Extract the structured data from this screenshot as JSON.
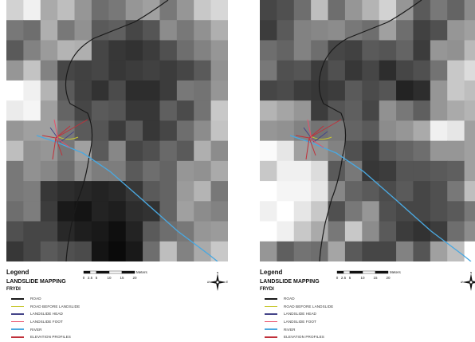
{
  "panels": [
    {
      "grid": [
        [
          210,
          240,
          170,
          190,
          150,
          110,
          120,
          150,
          160,
          120,
          150,
          200,
          215
        ],
        [
          120,
          110,
          175,
          120,
          145,
          90,
          95,
          70,
          85,
          140,
          120,
          145,
          175
        ],
        [
          90,
          130,
          155,
          180,
          175,
          70,
          55,
          50,
          60,
          80,
          110,
          130,
          150
        ],
        [
          150,
          195,
          130,
          70,
          65,
          70,
          55,
          60,
          65,
          60,
          70,
          90,
          145
        ],
        [
          255,
          240,
          180,
          90,
          65,
          50,
          75,
          45,
          45,
          60,
          120,
          115,
          150
        ],
        [
          235,
          245,
          160,
          100,
          70,
          90,
          85,
          55,
          55,
          95,
          75,
          115,
          200
        ],
        [
          150,
          160,
          160,
          120,
          90,
          85,
          60,
          90,
          55,
          70,
          110,
          140,
          195
        ],
        [
          190,
          145,
          150,
          120,
          160,
          90,
          135,
          70,
          80,
          105,
          90,
          175,
          140
        ],
        [
          120,
          145,
          135,
          110,
          140,
          125,
          125,
          90,
          110,
          100,
          150,
          145,
          170
        ],
        [
          120,
          125,
          55,
          45,
          40,
          35,
          40,
          55,
          90,
          100,
          155,
          180,
          120
        ],
        [
          110,
          125,
          60,
          25,
          20,
          35,
          30,
          45,
          50,
          100,
          160,
          140,
          130
        ],
        [
          80,
          70,
          70,
          40,
          30,
          25,
          15,
          35,
          90,
          110,
          120,
          150,
          155
        ],
        [
          55,
          70,
          90,
          80,
          75,
          20,
          10,
          25,
          110,
          190,
          130,
          170,
          200
        ]
      ],
      "legend": {
        "title": "Legend",
        "heading": "LANDSLIDE MAPPING",
        "subheading": "FRYDI",
        "items": [
          "ROAD",
          "ROAD BEFORE LANDSLIDE",
          "LANDSLIDE HEAD",
          "LANDSLIDE FOOT",
          "RIVER",
          "ELEVATION PROFILES"
        ]
      },
      "scale": {
        "unit": "Meters",
        "ticks": [
          "0",
          "2.5",
          "5",
          "10",
          "15",
          "20"
        ]
      },
      "north": {
        "n": "N",
        "s": "S",
        "e": "E",
        "w": "W"
      }
    },
    {
      "grid": [
        [
          70,
          80,
          110,
          190,
          110,
          150,
          180,
          210,
          150,
          90,
          120,
          100,
          140
        ],
        [
          60,
          90,
          130,
          135,
          140,
          120,
          110,
          160,
          110,
          65,
          80,
          150,
          160
        ],
        [
          110,
          100,
          130,
          110,
          70,
          65,
          90,
          85,
          100,
          60,
          150,
          145,
          185
        ],
        [
          120,
          80,
          85,
          60,
          80,
          55,
          70,
          45,
          70,
          80,
          115,
          200,
          220
        ],
        [
          70,
          75,
          60,
          55,
          60,
          90,
          75,
          85,
          35,
          45,
          150,
          200,
          190
        ],
        [
          180,
          165,
          150,
          60,
          85,
          95,
          70,
          145,
          120,
          95,
          150,
          170,
          180
        ],
        [
          150,
          145,
          130,
          115,
          120,
          100,
          90,
          140,
          150,
          170,
          240,
          230,
          160
        ],
        [
          250,
          230,
          160,
          150,
          130,
          80,
          60,
          90,
          100,
          110,
          150,
          150,
          160
        ],
        [
          200,
          240,
          240,
          220,
          90,
          120,
          55,
          60,
          85,
          85,
          90,
          95,
          160
        ],
        [
          255,
          245,
          245,
          230,
          135,
          100,
          90,
          75,
          90,
          70,
          80,
          120,
          190
        ],
        [
          240,
          255,
          230,
          200,
          80,
          120,
          150,
          80,
          70,
          70,
          80,
          90,
          120
        ],
        [
          255,
          240,
          200,
          170,
          120,
          200,
          140,
          90,
          60,
          50,
          60,
          110,
          140
        ],
        [
          150,
          95,
          115,
          110,
          165,
          90,
          70,
          70,
          130,
          85,
          160,
          190,
          255
        ]
      ],
      "legend": {
        "title": "Legend",
        "heading": "LANDSLIDE MAPPING",
        "subheading": "FRYDI",
        "items": [
          "ROAD",
          "ROAD BEFORE LANDSLIDE",
          "LANDSLIDE HEAD",
          "LANDSLIDE FOOT",
          "RIVER",
          "ELEVATION PROFILES"
        ]
      },
      "scale": {
        "unit": "Meters",
        "ticks": [
          "0",
          "2.5",
          "5",
          "10",
          "15",
          "20"
        ]
      },
      "north": {
        "n": "N",
        "s": "S",
        "e": "E",
        "w": "W"
      }
    }
  ],
  "colors": {
    "road": "#1a1a1a",
    "road_before": "#c8c832",
    "landslide_head": "#444488",
    "landslide_foot": "#e8506a",
    "river": "#4aa8e0",
    "elevation_profiles": "#c0303a"
  }
}
